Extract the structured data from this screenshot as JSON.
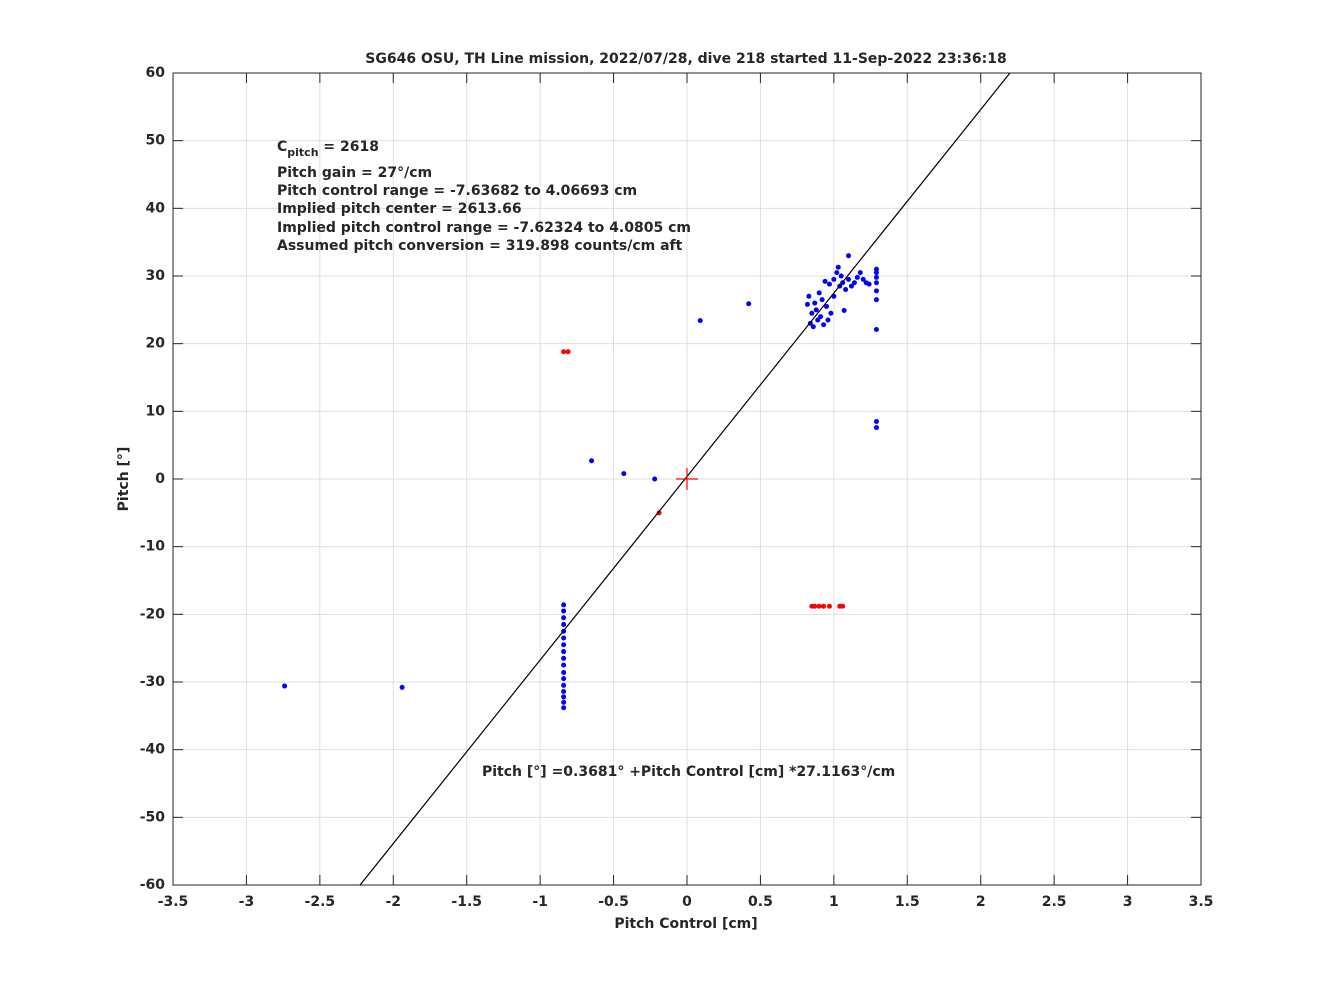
{
  "chart_data": {
    "type": "scatter",
    "title": "SG646 OSU, TH Line mission, 2022/07/28, dive 218 started 11-Sep-2022 23:36:18",
    "xlabel": "Pitch Control [cm]",
    "ylabel": "Pitch [°]",
    "xlim": [
      -3.5,
      3.5
    ],
    "ylim": [
      -60,
      60
    ],
    "xticks": [
      -3.5,
      -3,
      -2.5,
      -2,
      -1.5,
      -1,
      -0.5,
      0,
      0.5,
      1,
      1.5,
      2,
      2.5,
      3,
      3.5
    ],
    "yticks": [
      -60,
      -50,
      -40,
      -30,
      -20,
      -10,
      0,
      10,
      20,
      30,
      40,
      50,
      60
    ],
    "grid": true,
    "annotations": [
      {
        "text": "C",
        "sub": "pitch",
        "rest": " = 2618"
      },
      "Pitch gain = 27°/cm",
      "Pitch control range = -7.63682 to 4.06693 cm",
      "Implied pitch center = 2613.66",
      "Implied pitch control range = -7.62324 to 4.0805 cm",
      "Assumed pitch conversion = 319.898 counts/cm aft"
    ],
    "equation": "Pitch [°] =0.3681° +Pitch Control [cm] *27.1163°/cm",
    "series": [
      {
        "color": "#0000ff",
        "marker": "dot",
        "x": [
          -2.74,
          -1.94,
          -0.65,
          -0.43,
          -0.22,
          0.09,
          0.42,
          -0.84,
          -0.84,
          -0.84,
          -0.84,
          -0.84,
          -0.84,
          -0.84,
          -0.84,
          -0.84,
          -0.84,
          -0.84,
          -0.84,
          -0.84,
          -0.84,
          -0.84,
          -0.84,
          -0.84,
          0.82,
          0.83,
          0.84,
          0.85,
          0.86,
          0.87,
          0.88,
          0.89,
          0.9,
          0.91,
          0.92,
          0.93,
          0.95,
          0.96,
          0.98,
          1.0,
          1.0,
          1.02,
          1.03,
          1.04,
          1.05,
          1.06,
          1.08,
          1.1,
          1.12,
          1.14,
          1.16,
          1.18,
          1.2,
          1.22,
          1.24,
          0.94,
          0.97,
          1.07,
          1.1,
          1.29,
          1.29,
          1.29,
          1.29,
          1.29,
          1.29,
          1.29,
          1.29,
          1.29
        ],
        "values": [
          -30.6,
          -30.8,
          2.7,
          0.8,
          0,
          23.4,
          25.9,
          -33.8,
          -33,
          -32.2,
          -31.4,
          -30.5,
          -29.5,
          -28.6,
          -27.5,
          -26.5,
          -25.5,
          -24.5,
          -23.5,
          -22.5,
          -21.5,
          -20.5,
          -19.5,
          -18.6,
          25.8,
          27,
          23,
          24.5,
          22.5,
          26,
          25,
          23.5,
          27.5,
          24,
          26.5,
          22.8,
          25.5,
          23.5,
          24.5,
          27,
          29.5,
          30.5,
          31.3,
          28.5,
          30,
          29,
          28,
          29.5,
          28.5,
          29,
          29.8,
          30.5,
          29.5,
          29,
          28.8,
          29.2,
          28.8,
          24.9,
          33,
          22.1,
          8.5,
          7.6,
          26.5,
          27.8,
          29,
          29.8,
          30.5,
          31
        ]
      },
      {
        "color": "#ff0000",
        "marker": "dot",
        "x": [
          -0.84,
          -0.81,
          -0.19,
          0.85,
          0.87,
          0.9,
          0.93,
          0.97,
          1.04,
          1.06
        ],
        "values": [
          18.8,
          18.8,
          -5,
          -18.8,
          -18.8,
          -18.8,
          -18.8,
          -18.8,
          -18.8,
          -18.8
        ]
      },
      {
        "color": "#000000",
        "marker": "line",
        "x": [
          -2.226,
          2.199
        ],
        "values": [
          -60,
          60
        ]
      },
      {
        "color": "#ff0000",
        "marker": "plus",
        "x": [
          0
        ],
        "values": [
          0
        ]
      }
    ]
  }
}
